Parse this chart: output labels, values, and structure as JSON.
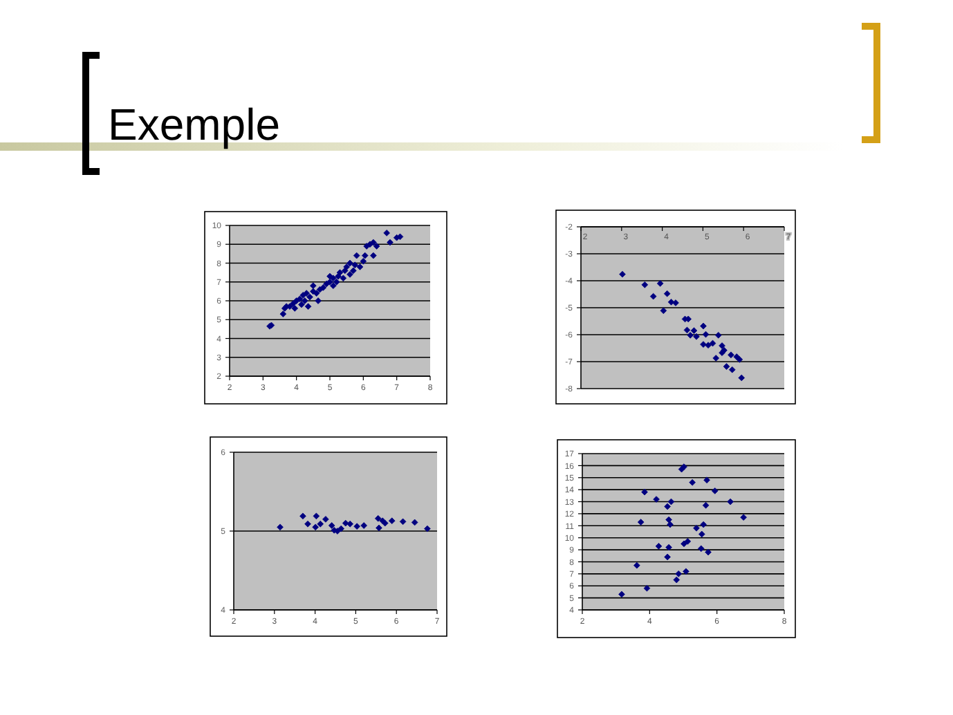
{
  "chart_data": [
    {
      "type": "scatter",
      "title": "Exemple",
      "marker": "diamond",
      "grid": "y",
      "xlim": [
        2,
        8
      ],
      "ylim": [
        2,
        10
      ],
      "xticks": [
        2,
        3,
        4,
        5,
        6,
        7,
        8
      ],
      "yticks": [
        2,
        3,
        4,
        5,
        6,
        7,
        8,
        9,
        10
      ],
      "x": [
        3.2,
        3.25,
        3.6,
        3.65,
        3.7,
        3.8,
        3.9,
        3.95,
        4.0,
        4.1,
        4.15,
        4.2,
        4.25,
        4.3,
        4.35,
        4.4,
        4.5,
        4.5,
        4.6,
        4.65,
        4.7,
        4.8,
        4.9,
        5.0,
        5.0,
        5.1,
        5.1,
        5.2,
        5.25,
        5.3,
        5.4,
        5.45,
        5.5,
        5.6,
        5.6,
        5.7,
        5.75,
        5.8,
        5.9,
        6.0,
        6.05,
        6.1,
        6.2,
        6.3,
        6.3,
        6.4,
        6.7,
        6.8,
        7.0,
        7.1
      ],
      "series": [
        {
          "color": "#000080",
          "values": [
            4.65,
            4.7,
            5.3,
            5.6,
            5.7,
            5.7,
            5.85,
            5.6,
            6.0,
            6.1,
            5.8,
            6.3,
            6.0,
            6.4,
            5.7,
            6.2,
            6.5,
            6.8,
            6.4,
            6.0,
            6.6,
            6.7,
            6.9,
            7.0,
            7.3,
            6.8,
            7.2,
            7.0,
            7.3,
            7.5,
            7.2,
            7.6,
            7.8,
            7.4,
            8.0,
            7.6,
            7.9,
            8.4,
            7.8,
            8.1,
            8.4,
            8.9,
            9.0,
            9.1,
            8.4,
            8.9,
            9.6,
            9.1,
            9.35,
            9.4
          ]
        }
      ]
    },
    {
      "type": "scatter",
      "marker": "diamond",
      "grid": "y",
      "xlim": [
        2,
        7
      ],
      "ylim": [
        -8,
        -2
      ],
      "xticks": [
        2,
        3,
        4,
        5,
        6,
        7
      ],
      "yticks": [
        -8,
        -7,
        -6,
        -5,
        -4,
        -3,
        -2
      ],
      "x": [
        3.02,
        3.57,
        3.95,
        3.78,
        4.12,
        4.22,
        4.33,
        4.03,
        4.56,
        4.64,
        4.61,
        4.78,
        4.69,
        4.84,
        5.01,
        5.07,
        5.01,
        5.13,
        5.24,
        5.38,
        5.47,
        5.52,
        5.47,
        5.32,
        5.69,
        5.83,
        5.9,
        5.58,
        5.72,
        5.95
      ],
      "series": [
        {
          "color": "#000080",
          "values": [
            -3.76,
            -4.15,
            -4.1,
            -4.58,
            -4.48,
            -4.79,
            -4.82,
            -5.11,
            -5.42,
            -5.42,
            -5.83,
            -5.85,
            -6.02,
            -6.07,
            -5.68,
            -5.99,
            -6.36,
            -6.39,
            -6.32,
            -6.02,
            -6.41,
            -6.58,
            -6.67,
            -6.87,
            -6.75,
            -6.82,
            -6.92,
            -7.18,
            -7.3,
            -7.6
          ]
        }
      ]
    },
    {
      "type": "scatter",
      "marker": "diamond",
      "grid": "y",
      "xlim": [
        2,
        7
      ],
      "ylim": [
        4,
        6
      ],
      "xticks": [
        2,
        3,
        4,
        5,
        6,
        7
      ],
      "yticks": [
        4,
        5,
        6
      ],
      "x": [
        3.14,
        3.7,
        3.82,
        4.03,
        4.01,
        4.13,
        4.26,
        4.41,
        4.47,
        4.55,
        4.64,
        4.75,
        4.86,
        5.03,
        5.2,
        5.55,
        5.57,
        5.66,
        5.72,
        5.89,
        6.16,
        6.45,
        6.76
      ],
      "series": [
        {
          "color": "#000080",
          "values": [
            5.05,
            5.19,
            5.09,
            5.19,
            5.05,
            5.09,
            5.15,
            5.07,
            5.01,
            5.0,
            5.03,
            5.1,
            5.09,
            5.06,
            5.07,
            5.16,
            5.04,
            5.13,
            5.1,
            5.13,
            5.12,
            5.11,
            5.03
          ]
        }
      ]
    },
    {
      "type": "scatter",
      "marker": "diamond",
      "grid": "y",
      "xlim": [
        2,
        8
      ],
      "ylim": [
        4,
        17
      ],
      "xticks": [
        2,
        4,
        6,
        8
      ],
      "yticks": [
        4,
        5,
        6,
        7,
        8,
        9,
        10,
        11,
        12,
        13,
        14,
        15,
        16,
        17
      ],
      "x": [
        3.17,
        3.62,
        3.92,
        3.85,
        3.74,
        4.2,
        4.27,
        4.53,
        4.64,
        4.57,
        4.61,
        4.57,
        4.53,
        4.8,
        4.86,
        5.08,
        4.95,
        5.02,
        5.27,
        5.02,
        5.13,
        5.39,
        5.55,
        5.6,
        5.53,
        5.74,
        5.67,
        5.7,
        5.94,
        6.4,
        6.79
      ],
      "series": [
        {
          "color": "#000080",
          "values": [
            5.3,
            7.7,
            5.8,
            13.8,
            11.3,
            13.2,
            9.3,
            12.6,
            13.0,
            11.5,
            11.1,
            9.2,
            8.4,
            6.5,
            7.0,
            7.2,
            15.7,
            15.9,
            14.6,
            9.5,
            9.7,
            10.8,
            10.3,
            11.1,
            9.1,
            8.8,
            12.7,
            14.8,
            13.9,
            13.0,
            11.7
          ]
        }
      ]
    }
  ]
}
